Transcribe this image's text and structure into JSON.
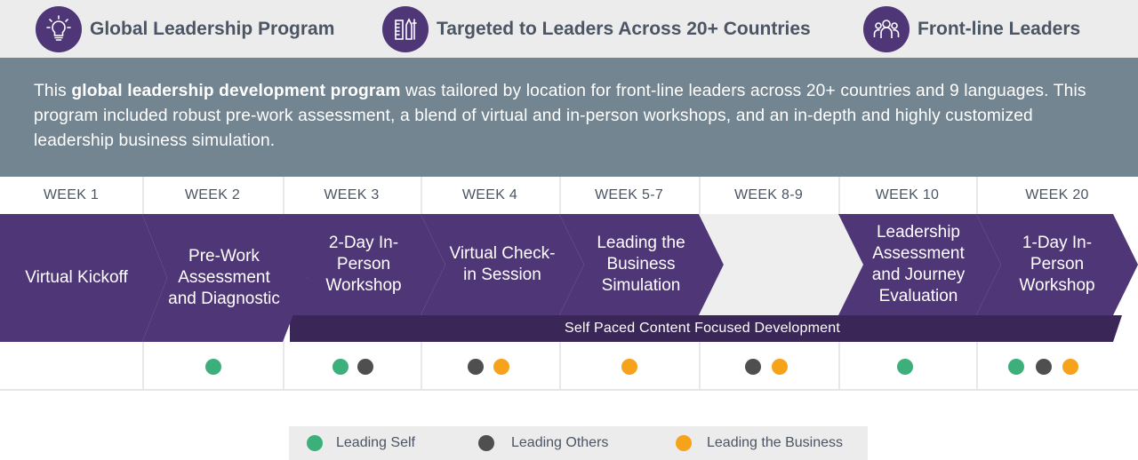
{
  "header": {
    "items": [
      {
        "icon": "lightbulb-icon",
        "label": "Global Leadership Program"
      },
      {
        "icon": "tools-icon",
        "label": "Targeted to Leaders Across 20+ Countries"
      },
      {
        "icon": "people-group-icon",
        "label": "Front-line Leaders"
      }
    ]
  },
  "description": {
    "prefix": "This ",
    "bold": "global leadership development program",
    "rest": " was tailored by location for front-line leaders across 20+ countries and 9 languages. This program included robust pre-work assessment, a blend of virtual and in-person workshops, and an in-depth and highly customized leadership business simulation."
  },
  "weeks": [
    "WEEK 1",
    "WEEK 2",
    "WEEK 3",
    "WEEK 4",
    "WEEK 5-7",
    "WEEK 8-9",
    "WEEK 10",
    "WEEK 20"
  ],
  "steps": [
    "Virtual Kickoff",
    "Pre-Work Assessment and Diagnostic",
    "2-Day In-Person Workshop",
    "Virtual Check-in Session",
    "Leading the Business Simulation",
    "",
    "Leadership Assessment and Journey Evaluation",
    "1-Day In-Person Workshop"
  ],
  "self_paced_bar": "Self Paced Content Focused Development",
  "dot_rows": [
    [],
    [
      "self"
    ],
    [
      "self",
      "others"
    ],
    [
      "others",
      "business"
    ],
    [
      "business"
    ],
    [
      "others",
      "business"
    ],
    [
      "self"
    ],
    [
      "self",
      "others",
      "business"
    ]
  ],
  "legend": [
    {
      "key": "self",
      "label": "Leading Self"
    },
    {
      "key": "others",
      "label": "Leading Others"
    },
    {
      "key": "business",
      "label": "Leading the Business"
    }
  ],
  "colors": {
    "purple": "#4f3677",
    "dark_purple": "#3a2758",
    "slate": "#728591",
    "self": "#3daf7b",
    "others": "#4f4f4f",
    "business": "#f7a21b"
  }
}
